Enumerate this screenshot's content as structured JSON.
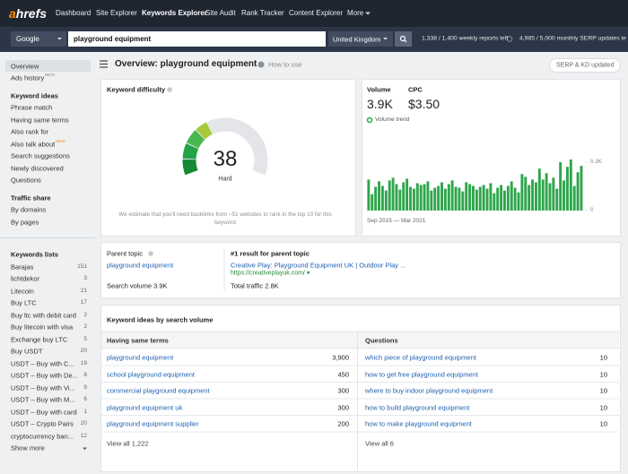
{
  "nav": {
    "logo": "ahrefs",
    "items": [
      "Dashboard",
      "Site Explorer",
      "Keywords Explorer",
      "Site Audit",
      "Rank Tracker",
      "Content Explorer",
      "More"
    ]
  },
  "search": {
    "engine": "Google",
    "query": "playground equipment",
    "country": "United Kingdom",
    "weekly": "1,338 / 1,400 weekly reports left",
    "monthly": "4,985 / 5,000 monthly SERP updates le"
  },
  "sidebar": {
    "top": [
      {
        "label": "Overview"
      },
      {
        "label": "Ads history",
        "badge": "BETA"
      }
    ],
    "sections": [
      {
        "title": "Keyword ideas",
        "items": [
          {
            "label": "Phrase match"
          },
          {
            "label": "Having same terms"
          },
          {
            "label": "Also rank for"
          },
          {
            "label": "Also talk about",
            "badge": "NEW"
          },
          {
            "label": "Search suggestions"
          },
          {
            "label": "Newly discovered"
          },
          {
            "label": "Questions"
          }
        ]
      },
      {
        "title": "Traffic share",
        "items": [
          {
            "label": "By domains"
          },
          {
            "label": "By pages"
          }
        ]
      }
    ],
    "lists": {
      "title": "Keywords lists",
      "items": [
        {
          "label": "Barajas",
          "count": "151"
        },
        {
          "label": "lichtdekor",
          "count": "3"
        },
        {
          "label": "Litecoin",
          "count": "21"
        },
        {
          "label": "Buy LTC",
          "count": "17"
        },
        {
          "label": "Buy ltc with debit card",
          "count": "2"
        },
        {
          "label": "Buy litecoin with visa",
          "count": "2"
        },
        {
          "label": "Exchange buy LTC",
          "count": "5"
        },
        {
          "label": "Buy USDT",
          "count": "20"
        },
        {
          "label": "USDT – Buy with C...",
          "count": "19"
        },
        {
          "label": "USDT – Buy with De...",
          "count": "8"
        },
        {
          "label": "USDT – Buy with Vi...",
          "count": "9"
        },
        {
          "label": "USDT – Buy with M...",
          "count": "6"
        },
        {
          "label": "USDT – Buy with card",
          "count": "1"
        },
        {
          "label": "USDT – Crypto Pairs",
          "count": "20"
        },
        {
          "label": "cryptocurrency ban...",
          "count": "12"
        }
      ],
      "more": "Show more"
    }
  },
  "header": {
    "title": "Overview: playground equipment",
    "help": "How to use",
    "button": "SERP & KD updated"
  },
  "difficulty": {
    "title": "Keyword difficulty",
    "value": 38,
    "scale": [
      0,
      100
    ],
    "label": "Hard",
    "note": "We estimate that you'll need backlinks from ~51 websites to rank in the top 10 for this keyword"
  },
  "volume": {
    "volume_label": "Volume",
    "volume": "3.9K",
    "cpc_label": "CPC",
    "cpc": "$3.50"
  },
  "chart_data": {
    "type": "bar",
    "title": "Volume trend",
    "range_label": "Sep 2015 — Mar 2021",
    "color": "#2ea64b",
    "values": [
      3400,
      1800,
      2600,
      3200,
      2700,
      2200,
      3300,
      3600,
      2900,
      2300,
      3100,
      3500,
      2600,
      2400,
      3000,
      2800,
      2900,
      3200,
      2200,
      2500,
      2700,
      3100,
      2400,
      2900,
      3300,
      2600,
      2500,
      2100,
      3100,
      2900,
      2700,
      2300,
      2600,
      2800,
      2400,
      3000,
      1900,
      2500,
      2800,
      2200,
      2700,
      3200,
      2500,
      2000,
      4000,
      3700,
      2800,
      3400,
      3100,
      4600,
      3400,
      4100,
      3000,
      3600,
      2400,
      5300,
      3300,
      4800,
      5600,
      2700,
      4200,
      4900
    ],
    "ylim": [
      0,
      5600
    ],
    "yticks": [
      0,
      {
        "value": 5300,
        "label": "5.3K"
      }
    ]
  },
  "parent": {
    "title": "Parent topic",
    "topic": "playground equipment",
    "search_volume": "Search volume 3.9K",
    "result_title": "#1 result for parent topic",
    "result": "Creative Play: Playground Equipment UK | Outdoor Play ...",
    "url": "https://creativeplayuk.com/ ▾",
    "traffic": "Total traffic 2.8K"
  },
  "ideas": {
    "title": "Keyword ideas by search volume",
    "columns": [
      {
        "title": "Having same terms",
        "rows": [
          [
            "playground equipment",
            "3,900"
          ],
          [
            "school playground equipment",
            "450"
          ],
          [
            "commercial playground equipment",
            "300"
          ],
          [
            "playground equipment uk",
            "300"
          ],
          [
            "playground equipment supplier",
            "200"
          ]
        ],
        "view_all": "View all 1,222"
      },
      {
        "title": "Questions",
        "rows": [
          [
            "which piece of playground equipment",
            "10"
          ],
          [
            "how to get free playground equipment",
            "10"
          ],
          [
            "where to buy indoor playground equipment",
            "10"
          ],
          [
            "how to build playground equipment",
            "10"
          ],
          [
            "how to make playground equipment",
            "10"
          ]
        ],
        "view_all": "View all 6"
      }
    ]
  }
}
